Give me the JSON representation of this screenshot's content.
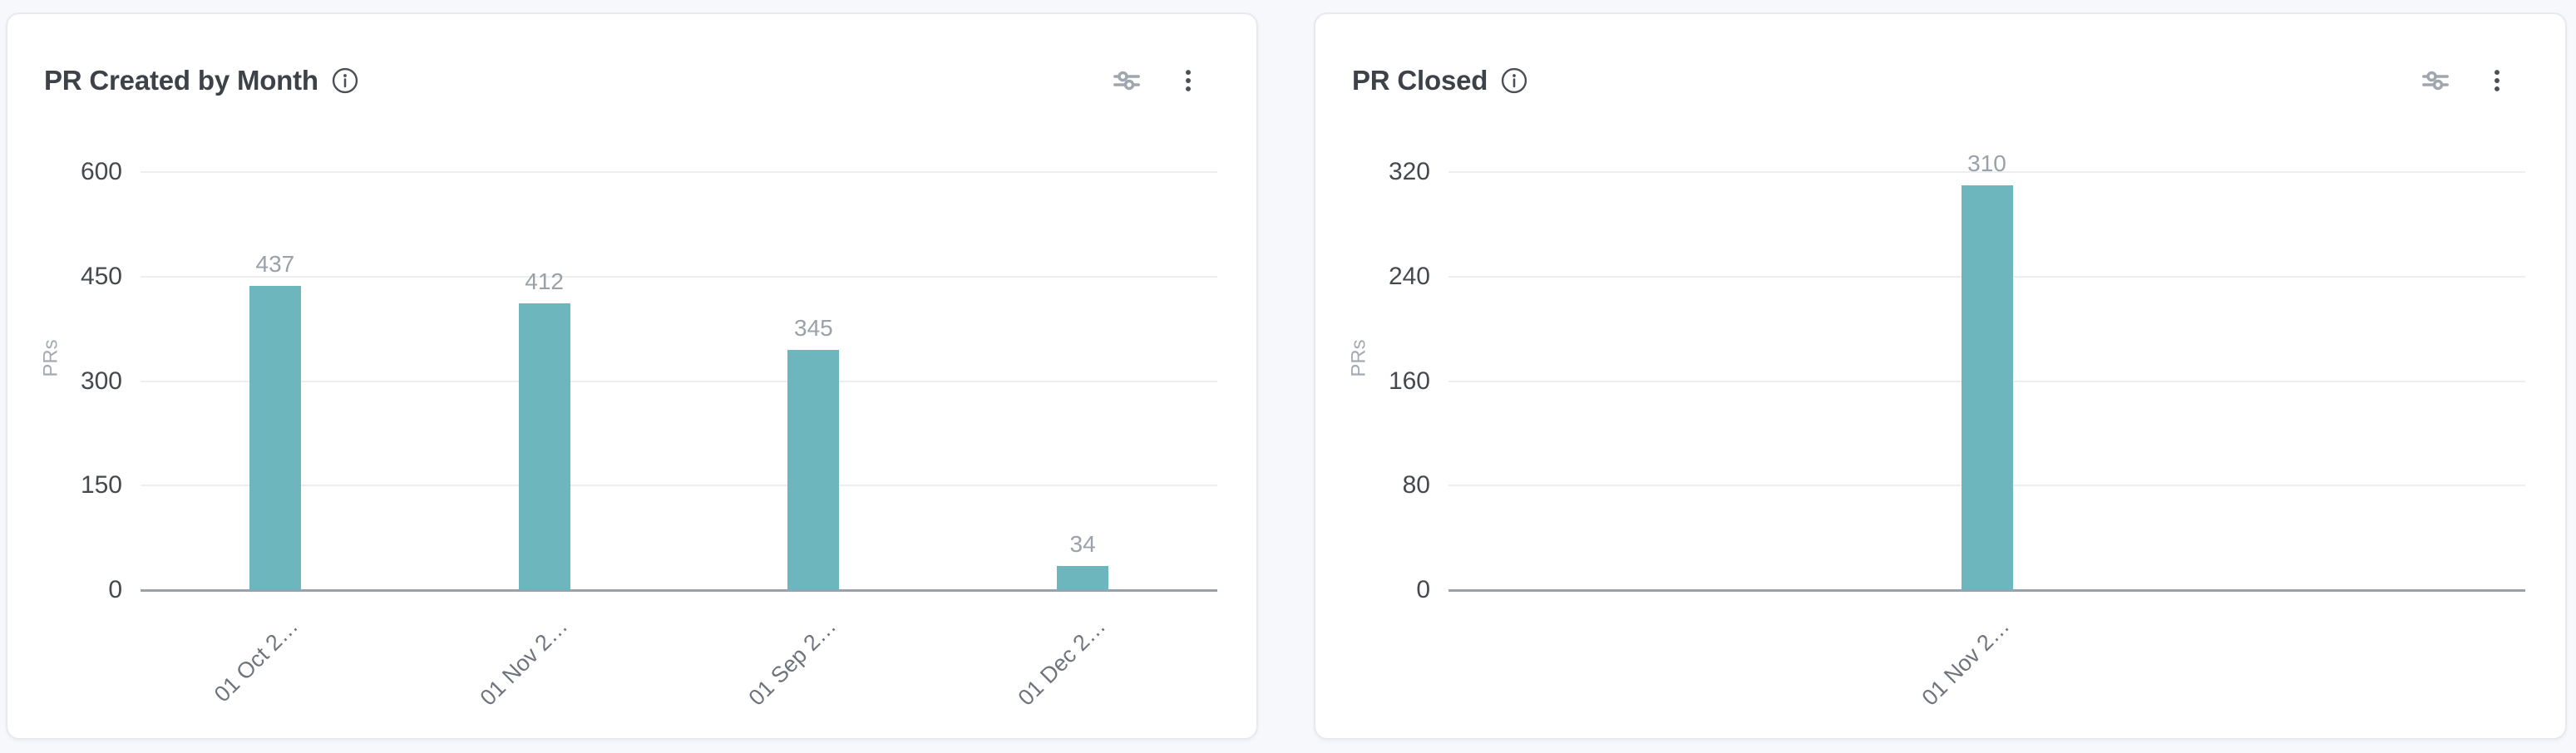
{
  "page": {
    "background": "#f7f8fb"
  },
  "icons": {
    "info": "info-icon",
    "filter": "filter-sliders-icon",
    "menu": "kebab-menu-icon"
  },
  "colors": {
    "bar": "#6db6be",
    "baseline": "#99a1ae",
    "gridline": "#eceef1",
    "card_background": "#ffffff"
  },
  "chart_data": [
    {
      "type": "bar",
      "title": "PR Created by Month",
      "ylabel": "PRs",
      "categories": [
        "01 Oct 2…",
        "01 Nov 2…",
        "01 Sep 2…",
        "01 Dec 2…"
      ],
      "values": [
        437,
        412,
        345,
        34
      ],
      "yticks": [
        0,
        150,
        300,
        450,
        600
      ],
      "ylim": [
        0,
        600
      ],
      "grid": true,
      "legend": "none",
      "bar_color": "#6db6be"
    },
    {
      "type": "bar",
      "title": "PR Closed",
      "ylabel": "PRs",
      "categories": [
        "01 Nov 2…"
      ],
      "values": [
        310
      ],
      "yticks": [
        0,
        80,
        160,
        240,
        320
      ],
      "ylim": [
        0,
        320
      ],
      "grid": true,
      "legend": "none",
      "bar_color": "#6db6be"
    }
  ]
}
